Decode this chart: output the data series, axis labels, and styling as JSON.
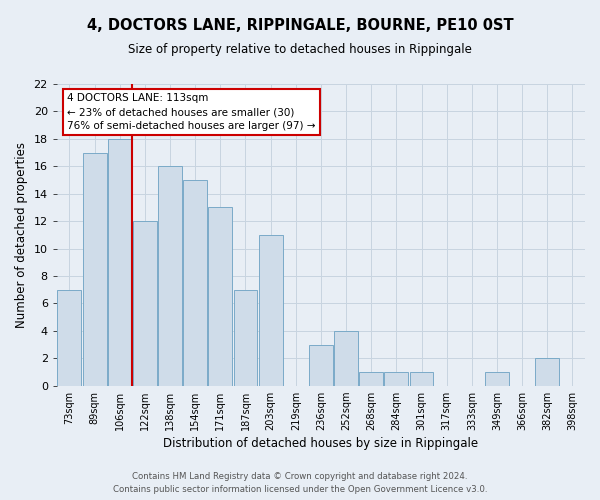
{
  "title": "4, DOCTORS LANE, RIPPINGALE, BOURNE, PE10 0ST",
  "subtitle": "Size of property relative to detached houses in Rippingale",
  "xlabel": "Distribution of detached houses by size in Rippingale",
  "ylabel": "Number of detached properties",
  "categories": [
    "73sqm",
    "89sqm",
    "106sqm",
    "122sqm",
    "138sqm",
    "154sqm",
    "171sqm",
    "187sqm",
    "203sqm",
    "219sqm",
    "236sqm",
    "252sqm",
    "268sqm",
    "284sqm",
    "301sqm",
    "317sqm",
    "333sqm",
    "349sqm",
    "366sqm",
    "382sqm",
    "398sqm"
  ],
  "values": [
    7,
    17,
    18,
    12,
    16,
    15,
    13,
    7,
    11,
    0,
    3,
    4,
    1,
    1,
    1,
    0,
    0,
    1,
    0,
    2,
    0
  ],
  "bar_color": "#cfdce9",
  "bar_edgecolor": "#7aaac8",
  "bar_linewidth": 0.7,
  "redline_index": 2.5,
  "redline_color": "#cc0000",
  "redline_linewidth": 1.5,
  "ylim": [
    0,
    22
  ],
  "yticks": [
    0,
    2,
    4,
    6,
    8,
    10,
    12,
    14,
    16,
    18,
    20,
    22
  ],
  "annotation_title": "4 DOCTORS LANE: 113sqm",
  "annotation_line1": "← 23% of detached houses are smaller (30)",
  "annotation_line2": "76% of semi-detached houses are larger (97) →",
  "annotation_bbox_edgecolor": "#cc0000",
  "annotation_bbox_facecolor": "#ffffff",
  "grid_color": "#c8d4e0",
  "background_color": "#e8eef5",
  "footer_line1": "Contains HM Land Registry data © Crown copyright and database right 2024.",
  "footer_line2": "Contains public sector information licensed under the Open Government Licence v3.0."
}
